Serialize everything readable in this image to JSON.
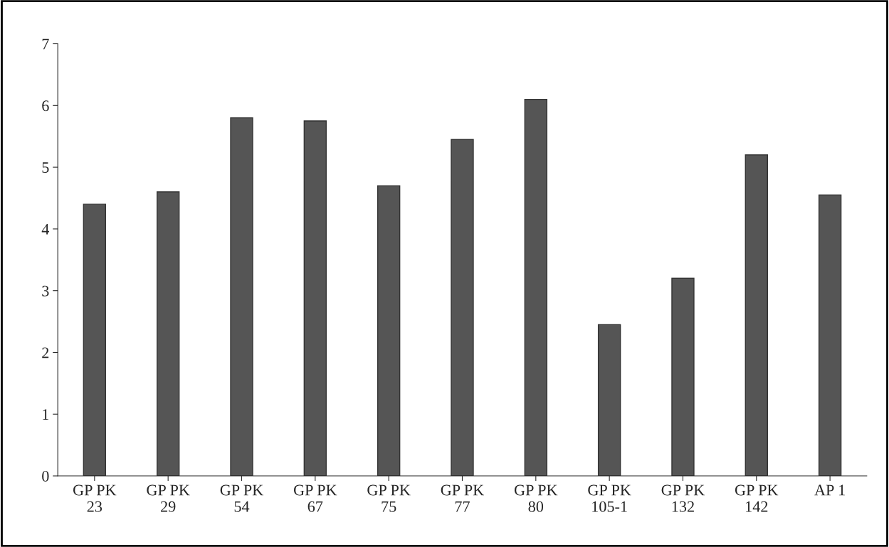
{
  "chart_data": {
    "type": "bar",
    "categories": [
      "GP PK\n23",
      "GP PK\n29",
      "GP PK\n54",
      "GP PK\n67",
      "GP PK\n75",
      "GP PK\n77",
      "GP PK\n80",
      "GP PK\n105-1",
      "GP PK\n132",
      "GP PK\n142",
      "AP 1"
    ],
    "values": [
      4.4,
      4.6,
      5.8,
      5.75,
      4.7,
      5.45,
      6.1,
      2.45,
      3.2,
      5.2,
      4.55
    ],
    "color": "#555555",
    "ylim": [
      0,
      7
    ],
    "yticks": [
      0,
      1,
      2,
      3,
      4,
      5,
      6,
      7
    ],
    "grid": false,
    "legend": false
  }
}
